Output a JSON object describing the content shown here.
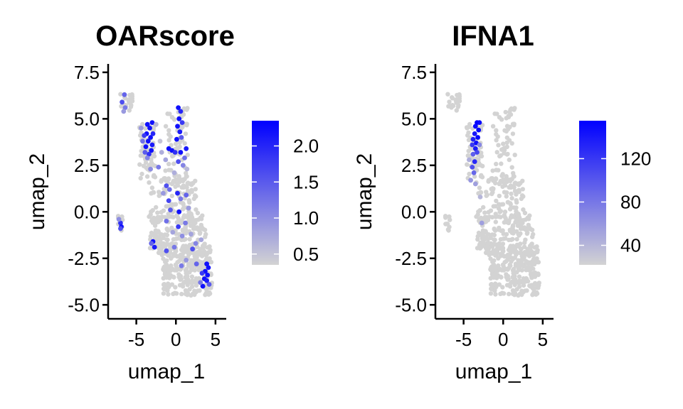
{
  "chart_data": [
    {
      "type": "scatter",
      "title": "OARscore",
      "xlabel": "umap_1",
      "ylabel": "umap_2",
      "xlim": [
        -8.2,
        6
      ],
      "ylim": [
        -5.6,
        7.8
      ],
      "xticks": [
        -5,
        0,
        5
      ],
      "xtick_labels": [
        "-5",
        "0",
        "5"
      ],
      "yticks": [
        -5,
        -2.5,
        0,
        2.5,
        5,
        7.5
      ],
      "ytick_labels": [
        "-5.0",
        "-2.5",
        "0.0",
        "2.5",
        "5.0",
        "7.5"
      ],
      "grid": false,
      "legend": {
        "position": "right",
        "type": "colorbar",
        "range": [
          0.35,
          2.35
        ],
        "ticks": [
          0.5,
          1.0,
          1.5,
          2.0
        ],
        "tick_labels": [
          "0.5",
          "1.0",
          "1.5",
          "2.0"
        ],
        "low_color": "#d3d3d3",
        "high_color": "#0000ff"
      },
      "points": [
        [
          -6.5,
          6.3,
          1.4
        ],
        [
          -6.8,
          5.9,
          1.6
        ],
        [
          -6.4,
          5.6,
          1.2
        ],
        [
          -6.6,
          5.4,
          0.9
        ],
        [
          -3.6,
          4.7,
          2.2
        ],
        [
          -3.3,
          4.5,
          2.2
        ],
        [
          -3.0,
          4.8,
          2.2
        ],
        [
          -3.7,
          4.2,
          2.2
        ],
        [
          -3.2,
          4.0,
          2.2
        ],
        [
          -3.5,
          3.8,
          2.2
        ],
        [
          -3.0,
          3.6,
          2.1
        ],
        [
          -3.8,
          3.5,
          2.2
        ],
        [
          -3.1,
          3.3,
          2.2
        ],
        [
          -4.0,
          4.1,
          1.8
        ],
        [
          -4.2,
          3.8,
          1.3
        ],
        [
          -4.4,
          4.5,
          0.9
        ],
        [
          -3.4,
          3.1,
          1.9
        ],
        [
          -2.9,
          4.2,
          2.0
        ],
        [
          -3.9,
          3.2,
          1.5
        ],
        [
          -3.6,
          2.9,
          1.1
        ],
        [
          -2.5,
          4.7,
          0.6
        ],
        [
          -2.0,
          3.8,
          0.5
        ],
        [
          -1.8,
          3.2,
          0.7
        ],
        [
          -2.2,
          2.4,
          1.2
        ],
        [
          -3.2,
          2.3,
          1.0
        ],
        [
          -1.3,
          2.8,
          0.8
        ],
        [
          0.3,
          5.6,
          2.2
        ],
        [
          0.6,
          5.4,
          2.0
        ],
        [
          0.4,
          5.0,
          2.2
        ],
        [
          0.8,
          4.8,
          1.8
        ],
        [
          0.2,
          4.6,
          2.2
        ],
        [
          0.5,
          4.3,
          2.1
        ],
        [
          0.1,
          3.9,
          2.2
        ],
        [
          0.7,
          4.0,
          1.5
        ],
        [
          -0.9,
          3.4,
          2.2
        ],
        [
          -0.5,
          3.3,
          2.2
        ],
        [
          -0.1,
          3.2,
          1.9
        ],
        [
          1.3,
          3.4,
          2.1
        ],
        [
          0.6,
          3.2,
          2.2
        ],
        [
          1.1,
          2.9,
          1.3
        ],
        [
          0.3,
          2.7,
          1.6
        ],
        [
          0.9,
          2.5,
          1.1
        ],
        [
          -0.2,
          2.1,
          0.7
        ],
        [
          1.4,
          2.3,
          0.6
        ],
        [
          -1.2,
          1.4,
          1.6
        ],
        [
          -0.8,
          1.2,
          1.3
        ],
        [
          -1.6,
          1.0,
          0.9
        ],
        [
          -0.9,
          0.6,
          1.7
        ],
        [
          0.2,
          1.0,
          2.0
        ],
        [
          0.6,
          0.7,
          1.2
        ],
        [
          1.3,
          0.9,
          1.4
        ],
        [
          -0.7,
          0.1,
          1.5
        ],
        [
          0.4,
          0.0,
          2.2
        ],
        [
          1.6,
          0.2,
          0.9
        ],
        [
          -1.2,
          -0.5,
          1.3
        ],
        [
          0.3,
          -0.8,
          1.8
        ],
        [
          1.2,
          -0.6,
          1.2
        ],
        [
          -0.4,
          -1.1,
          0.8
        ],
        [
          0.8,
          -1.3,
          1.0
        ],
        [
          1.9,
          -1.2,
          0.8
        ],
        [
          -2.9,
          -1.6,
          2.2
        ],
        [
          -2.7,
          -1.9,
          2.1
        ],
        [
          -3.1,
          -1.7,
          1.4
        ],
        [
          -1.2,
          -2.1,
          1.6
        ],
        [
          -0.2,
          -1.9,
          1.2
        ],
        [
          2.1,
          -2.0,
          1.6
        ],
        [
          2.5,
          -1.7,
          1.1
        ],
        [
          3.2,
          -1.5,
          0.8
        ],
        [
          1.3,
          -2.6,
          0.9
        ],
        [
          0.7,
          -2.9,
          1.2
        ],
        [
          2.6,
          -2.8,
          1.4
        ],
        [
          3.9,
          -2.8,
          2.2
        ],
        [
          4.1,
          -3.0,
          2.2
        ],
        [
          3.7,
          -3.2,
          2.2
        ],
        [
          4.0,
          -3.4,
          2.2
        ],
        [
          3.6,
          -3.6,
          2.2
        ],
        [
          3.9,
          -3.7,
          2.1
        ],
        [
          3.4,
          -4.0,
          2.2
        ],
        [
          3.3,
          -3.3,
          1.8
        ],
        [
          4.2,
          -3.9,
          1.5
        ],
        [
          3.1,
          -3.8,
          1.2
        ],
        [
          -7.0,
          -0.6,
          1.9
        ],
        [
          -6.9,
          -0.8,
          2.2
        ],
        [
          -7.2,
          -0.4,
          1.0
        ],
        [
          -7.0,
          -0.9,
          1.6
        ]
      ]
    },
    {
      "type": "scatter",
      "title": "IFNA1",
      "xlabel": "umap_1",
      "ylabel": "umap_2",
      "xlim": [
        -8.2,
        6
      ],
      "ylim": [
        -5.6,
        7.8
      ],
      "xticks": [
        -5,
        0,
        5
      ],
      "xtick_labels": [
        "-5",
        "0",
        "5"
      ],
      "yticks": [
        -5,
        -2.5,
        0,
        2.5,
        5,
        7.5
      ],
      "ytick_labels": [
        "-5.0",
        "-2.5",
        "0.0",
        "2.5",
        "5.0",
        "7.5"
      ],
      "grid": false,
      "legend": {
        "position": "right",
        "type": "colorbar",
        "range": [
          22,
          155
        ],
        "ticks": [
          40,
          80,
          120
        ],
        "tick_labels": [
          "40",
          "80",
          "120"
        ],
        "low_color": "#d3d3d3",
        "high_color": "#0000ff"
      },
      "points": [
        [
          -3.3,
          4.8,
          155
        ],
        [
          -3.0,
          4.8,
          150
        ],
        [
          -3.5,
          4.6,
          148
        ],
        [
          -3.1,
          4.4,
          152
        ],
        [
          -3.6,
          4.2,
          140
        ],
        [
          -3.2,
          4.0,
          150
        ],
        [
          -3.8,
          3.9,
          135
        ],
        [
          -3.4,
          3.7,
          145
        ],
        [
          -3.9,
          3.6,
          120
        ],
        [
          -3.5,
          3.4,
          138
        ],
        [
          -3.3,
          3.2,
          110
        ],
        [
          -3.8,
          3.1,
          95
        ],
        [
          -3.6,
          2.7,
          130
        ],
        [
          -3.9,
          2.4,
          105
        ],
        [
          -3.7,
          2.1,
          90
        ],
        [
          -4.1,
          1.7,
          60
        ],
        [
          -3.5,
          1.5,
          55
        ],
        [
          -3.0,
          3.6,
          70
        ],
        [
          -4.3,
          2.8,
          45
        ],
        [
          -2.9,
          0.8,
          40
        ],
        [
          -2.7,
          -0.6,
          55
        ]
      ]
    }
  ]
}
